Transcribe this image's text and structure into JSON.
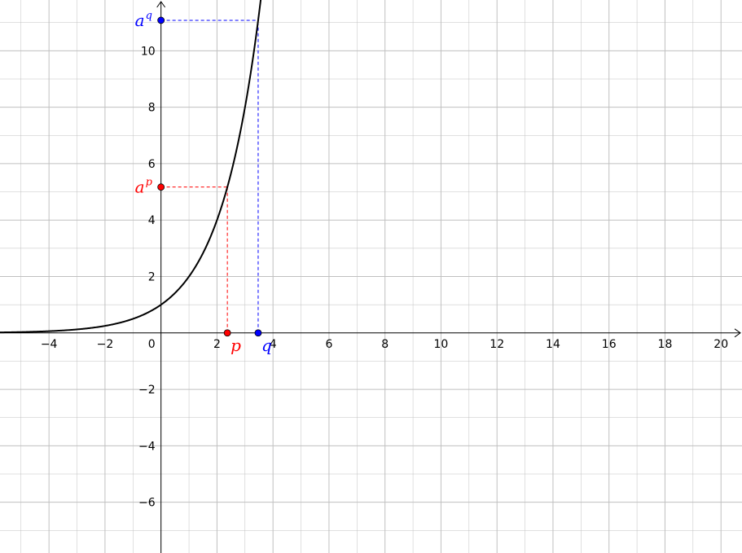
{
  "chart_data": {
    "type": "line",
    "title": "",
    "xlabel": "",
    "ylabel": "",
    "xlim": [
      -5.75,
      20.75
    ],
    "ylim": [
      -7.8,
      11.8
    ],
    "grid": true,
    "colors": {
      "grid": "#c0c0c0",
      "axes": "#000000",
      "curve": "#000000",
      "p": "#ff0000",
      "q": "#0000ff"
    },
    "x_ticks": [
      -4,
      -2,
      2,
      4,
      6,
      8,
      10,
      12,
      14,
      16,
      18,
      20
    ],
    "y_ticks": [
      -6,
      -4,
      -2,
      2,
      4,
      6,
      8,
      10
    ],
    "origin_label": "0",
    "series": [
      {
        "function": "y = a^x",
        "base": 2.0,
        "x_range": [
          -5.75,
          3.6
        ]
      }
    ],
    "points": [
      {
        "id": "p",
        "x": 2.37,
        "y": 0,
        "label": "p",
        "color": "#ff0000"
      },
      {
        "id": "q",
        "x": 3.47,
        "y": 0,
        "label": "q",
        "color": "#0000ff"
      },
      {
        "id": "ap",
        "x": 0,
        "y": 5.17,
        "label": "a",
        "sup": "p",
        "color": "#ff0000"
      },
      {
        "id": "aq",
        "x": 0,
        "y": 11.08,
        "label": "a",
        "sup": "q",
        "color": "#0000ff"
      }
    ]
  }
}
